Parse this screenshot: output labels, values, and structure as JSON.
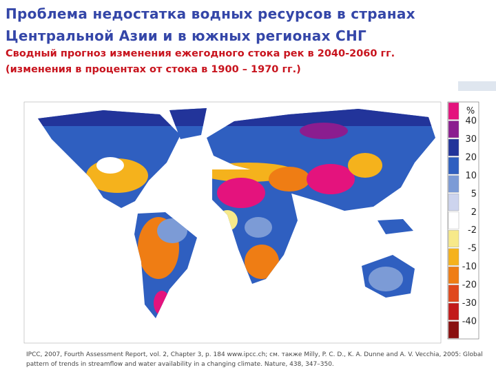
{
  "header": {
    "title": [
      "Проблема недостатка водных ресурсов в странах",
      "Центральной Азии и в южных регионах СНГ"
    ],
    "subtitle": [
      "Сводный прогноз изменения ежегодного стока рек в 2040-2060 гг.",
      "(изменения в процентах от стока в 1900 – 1970 гг.)"
    ]
  },
  "legend": {
    "unit": "%",
    "ticks": [
      40,
      30,
      20,
      10,
      5,
      2,
      -2,
      -5,
      -10,
      -20,
      -30,
      -40
    ],
    "colors": [
      "#e4137d",
      "#8b1d8f",
      "#22349a",
      "#2f5fc0",
      "#7c9bd6",
      "#cdd4ee",
      "#ffffff",
      "#f7e98a",
      "#f5b21c",
      "#ef7d14",
      "#e0481c",
      "#c21a1a",
      "#8a1010"
    ]
  },
  "citation": [
    "IPCC, 2007, Fourth Assessment Report, vol. 2, Chapter 3, p. 184  www.ipcc.ch; см. также Milly, P. C. D., K. A. Dunne and A. V. Vecchia, 2005: Global",
    "pattern of trends in streamflow and water availability in a changing climate. Nature, 438, 347–350."
  ]
}
